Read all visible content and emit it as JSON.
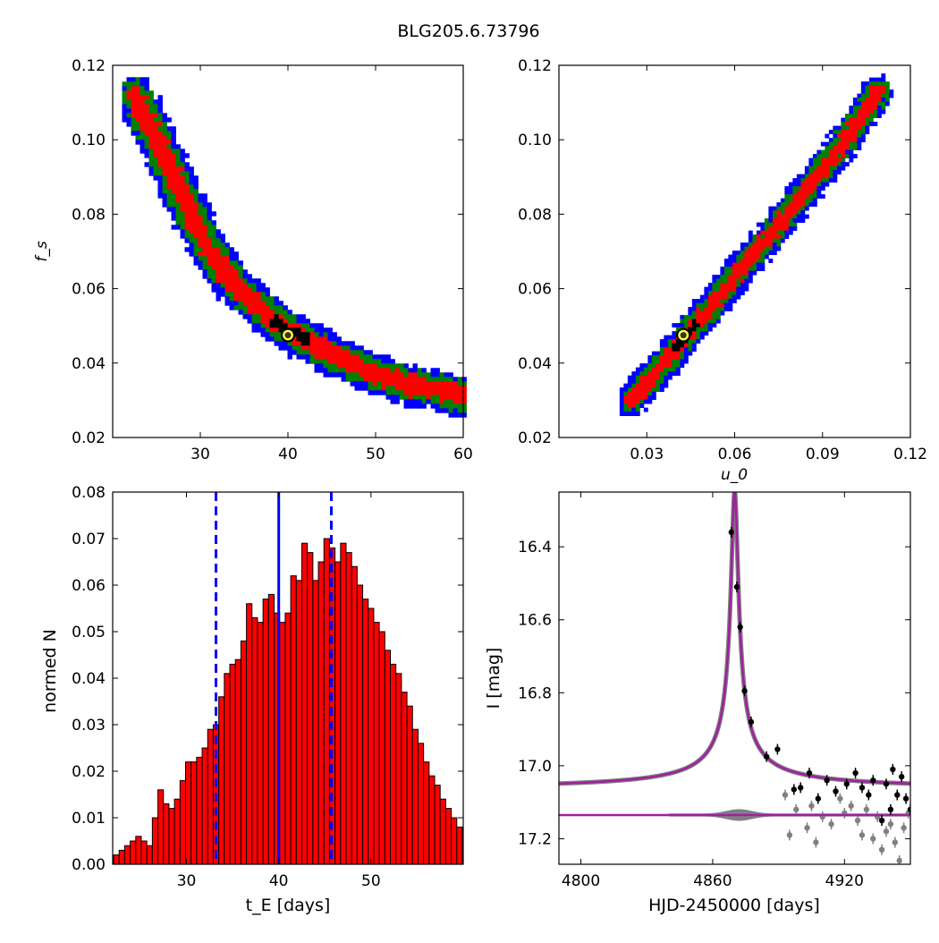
{
  "figure": {
    "title": "BLG205.6.73796"
  },
  "chart_data": [
    {
      "type": "heatmap",
      "panel": "top-left",
      "xlabel": "",
      "ylabel": "f_s",
      "xlim": [
        20,
        60
      ],
      "ylim": [
        0.02,
        0.12
      ],
      "xticks": [
        "30",
        "40",
        "50",
        "60"
      ],
      "yticks": [
        "0.02",
        "0.04",
        "0.06",
        "0.08",
        "0.10",
        "0.12"
      ],
      "colors": {
        "outer": "#0000ff",
        "middle": "#008000",
        "inner": "#ff0000",
        "core": "#000000"
      },
      "best_fit": {
        "x": 40.0,
        "y": 0.0475
      },
      "ridge": [
        [
          22.5,
          0.112
        ],
        [
          25,
          0.1
        ],
        [
          28,
          0.085
        ],
        [
          31,
          0.07
        ],
        [
          34,
          0.061
        ],
        [
          38,
          0.052
        ],
        [
          42,
          0.046
        ],
        [
          46,
          0.041
        ],
        [
          50,
          0.037
        ],
        [
          54,
          0.034
        ],
        [
          57,
          0.033
        ],
        [
          60,
          0.031
        ]
      ]
    },
    {
      "type": "heatmap",
      "panel": "top-right",
      "xlabel": "u_0",
      "ylabel": "",
      "xlim": [
        0.0,
        0.12
      ],
      "ylim": [
        0.02,
        0.12
      ],
      "xticks": [
        "0.03",
        "0.06",
        "0.09",
        "0.12"
      ],
      "yticks": [
        "0.02",
        "0.04",
        "0.06",
        "0.08",
        "0.10",
        "0.12"
      ],
      "colors": {
        "outer": "#0000ff",
        "middle": "#008000",
        "inner": "#ff0000",
        "core": "#000000"
      },
      "best_fit": {
        "x": 0.0425,
        "y": 0.0475
      },
      "ridge": [
        [
          0.025,
          0.03
        ],
        [
          0.035,
          0.039
        ],
        [
          0.045,
          0.049
        ],
        [
          0.055,
          0.058
        ],
        [
          0.065,
          0.068
        ],
        [
          0.075,
          0.077
        ],
        [
          0.085,
          0.087
        ],
        [
          0.095,
          0.097
        ],
        [
          0.105,
          0.108
        ],
        [
          0.109,
          0.113
        ]
      ]
    },
    {
      "type": "bar",
      "panel": "bottom-left",
      "xlabel": "t_E [days]",
      "ylabel": "normed N",
      "xlim": [
        22,
        60
      ],
      "ylim": [
        0.0,
        0.08
      ],
      "xticks": [
        "30",
        "40",
        "50"
      ],
      "yticks": [
        "0.00",
        "0.01",
        "0.02",
        "0.03",
        "0.04",
        "0.05",
        "0.06",
        "0.07",
        "0.08"
      ],
      "bin_start": 22.1,
      "bin_width": 0.6,
      "values": [
        0.002,
        0.003,
        0.004,
        0.005,
        0.006,
        0.005,
        0.004,
        0.01,
        0.016,
        0.013,
        0.012,
        0.014,
        0.018,
        0.022,
        0.022,
        0.023,
        0.025,
        0.029,
        0.03,
        0.036,
        0.041,
        0.043,
        0.044,
        0.048,
        0.056,
        0.053,
        0.052,
        0.057,
        0.058,
        0.054,
        0.052,
        0.054,
        0.062,
        0.061,
        0.069,
        0.067,
        0.061,
        0.065,
        0.07,
        0.068,
        0.065,
        0.069,
        0.067,
        0.064,
        0.06,
        0.057,
        0.055,
        0.052,
        0.05,
        0.046,
        0.043,
        0.041,
        0.037,
        0.034,
        0.029,
        0.026,
        0.022,
        0.019,
        0.017,
        0.014,
        0.012,
        0.01,
        0.008,
        0.006,
        0.004,
        0.003,
        0.002,
        0.002,
        0.001,
        0.001,
        0.0005,
        0.0005,
        0.0003
      ],
      "median": 40.0,
      "lower": 33.2,
      "upper": 45.7,
      "bar_color": "#ff0000",
      "line_color": "#0000ff"
    },
    {
      "type": "line",
      "panel": "bottom-right",
      "xlabel": "HJD-2450000 [days]",
      "ylabel": "I [mag]",
      "xlim": [
        4790,
        4950
      ],
      "ylim": [
        17.27,
        16.25
      ],
      "xticks": [
        "4800",
        "4860",
        "4920"
      ],
      "yticks": [
        "16.4",
        "16.6",
        "16.8",
        "17.0",
        "17.2"
      ],
      "model_color": "#a020a0",
      "peak": {
        "t0": 4870,
        "baseline": 17.065,
        "amplitude": 0.82,
        "tE": 1.5
      },
      "residual_baseline": 17.135,
      "points": [
        [
          4868.5,
          16.36
        ],
        [
          4871.0,
          16.51
        ],
        [
          4872.5,
          16.62
        ],
        [
          4874.5,
          16.795
        ],
        [
          4877.5,
          16.88
        ],
        [
          4884.5,
          16.975
        ],
        [
          4889.5,
          16.955
        ],
        [
          4897,
          17.065
        ],
        [
          4900,
          17.06
        ],
        [
          4904,
          17.02
        ],
        [
          4908,
          17.09
        ],
        [
          4912,
          17.04
        ],
        [
          4916,
          17.07
        ],
        [
          4921,
          17.05
        ],
        [
          4925,
          17.02
        ],
        [
          4928,
          17.06
        ],
        [
          4931,
          17.08
        ],
        [
          4933,
          17.04
        ],
        [
          4937,
          17.15
        ],
        [
          4939,
          17.05
        ],
        [
          4941,
          17.12
        ],
        [
          4942,
          17.01
        ],
        [
          4944,
          17.08
        ],
        [
          4946,
          17.03
        ],
        [
          4948,
          17.09
        ],
        [
          4950,
          17.12
        ]
      ],
      "residual_points": [
        [
          4893,
          17.08
        ],
        [
          4895,
          17.19
        ],
        [
          4898,
          17.12
        ],
        [
          4903,
          17.17
        ],
        [
          4905,
          17.11
        ],
        [
          4907,
          17.21
        ],
        [
          4910,
          17.14
        ],
        [
          4914,
          17.16
        ],
        [
          4918,
          17.09
        ],
        [
          4920,
          17.13
        ],
        [
          4923,
          17.11
        ],
        [
          4926,
          17.15
        ],
        [
          4928,
          17.19
        ],
        [
          4930,
          17.12
        ],
        [
          4933,
          17.2
        ],
        [
          4935,
          17.14
        ],
        [
          4937,
          17.23
        ],
        [
          4939,
          17.18
        ],
        [
          4941,
          17.16
        ],
        [
          4943,
          17.21
        ],
        [
          4945,
          17.26
        ],
        [
          4947,
          17.17
        ],
        [
          4949,
          17.13
        ]
      ]
    }
  ]
}
